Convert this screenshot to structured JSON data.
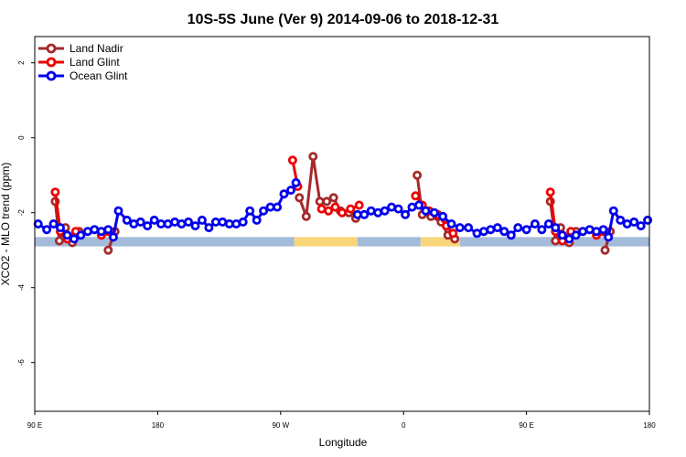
{
  "chart_data": {
    "type": "line",
    "title": "10S-5S June (Ver 9)   2014-09-06 to 2018-12-31",
    "xlabel": "Longitude",
    "ylabel": "XCO2 - MLO trend (ppm)",
    "xlim": [
      0,
      18
    ],
    "ylim": [
      -7.3,
      2.7
    ],
    "x_ticks": [
      {
        "value": 0,
        "label": "90 E"
      },
      {
        "value": 3.6,
        "label": "180"
      },
      {
        "value": 7.2,
        "label": "90 W"
      },
      {
        "value": 10.8,
        "label": "0"
      },
      {
        "value": 14.4,
        "label": "90 E"
      },
      {
        "value": 18,
        "label": "180"
      }
    ],
    "y_ticks": [
      {
        "value": 2,
        "label": "2"
      },
      {
        "value": 0,
        "label": "0"
      },
      {
        "value": -2,
        "label": "-2"
      },
      {
        "value": -4,
        "label": "-4"
      },
      {
        "value": -6,
        "label": "-6"
      }
    ],
    "grid": false,
    "legend_position": "top-left",
    "surface_band": {
      "y_range": [
        -2.9,
        -2.65
      ],
      "segments": [
        {
          "x0": 0,
          "x1": 7.6,
          "type": "ocean",
          "color": "#a4bbd9"
        },
        {
          "x0": 7.6,
          "x1": 9.45,
          "type": "land",
          "color": "#f7d67a"
        },
        {
          "x0": 9.45,
          "x1": 11.3,
          "type": "ocean",
          "color": "#a4bbd9"
        },
        {
          "x0": 11.3,
          "x1": 12.45,
          "type": "land",
          "color": "#f7d67a"
        },
        {
          "x0": 12.45,
          "x1": 18,
          "type": "ocean",
          "color": "#a4bbd9"
        }
      ]
    },
    "series": [
      {
        "name": "Land Nadir",
        "color": "#a52a2a",
        "segments": [
          [
            [
              0.6,
              -1.7
            ],
            [
              0.72,
              -2.75
            ],
            [
              0.9,
              -2.4
            ],
            [
              1.1,
              -2.8
            ],
            [
              1.3,
              -2.5
            ]
          ],
          [
            [
              2.15,
              -3.0
            ],
            [
              2.35,
              -2.5
            ]
          ],
          [
            [
              7.75,
              -1.6
            ],
            [
              7.95,
              -2.1
            ],
            [
              8.15,
              -0.5
            ],
            [
              8.35,
              -1.7
            ],
            [
              8.55,
              -1.7
            ],
            [
              8.75,
              -1.6
            ],
            [
              8.95,
              -1.95
            ],
            [
              9.2,
              -2.0
            ],
            [
              9.4,
              -2.15
            ]
          ],
          [
            [
              11.2,
              -1.0
            ],
            [
              11.35,
              -2.05
            ],
            [
              11.6,
              -2.1
            ],
            [
              11.9,
              -2.25
            ],
            [
              12.1,
              -2.6
            ],
            [
              12.3,
              -2.7
            ]
          ],
          [
            [
              15.1,
              -1.7
            ],
            [
              15.25,
              -2.75
            ],
            [
              15.4,
              -2.4
            ],
            [
              15.65,
              -2.8
            ],
            [
              15.85,
              -2.5
            ]
          ],
          [
            [
              16.7,
              -3.0
            ],
            [
              16.85,
              -2.5
            ]
          ]
        ]
      },
      {
        "name": "Land Glint",
        "color": "#ee0000",
        "segments": [
          [
            [
              0.6,
              -1.45
            ],
            [
              0.75,
              -2.5
            ],
            [
              0.95,
              -2.7
            ],
            [
              1.2,
              -2.5
            ]
          ],
          [
            [
              1.95,
              -2.6
            ],
            [
              2.15,
              -2.5
            ]
          ],
          [
            [
              7.55,
              -0.6
            ],
            [
              7.7,
              -1.3
            ]
          ],
          [
            [
              8.4,
              -1.9
            ],
            [
              8.6,
              -1.95
            ],
            [
              8.8,
              -1.85
            ],
            [
              9.0,
              -2.0
            ],
            [
              9.25,
              -1.9
            ],
            [
              9.5,
              -1.8
            ]
          ],
          [
            [
              11.15,
              -1.55
            ],
            [
              11.35,
              -1.8
            ],
            [
              11.55,
              -1.95
            ],
            [
              11.8,
              -2.05
            ],
            [
              12.05,
              -2.35
            ],
            [
              12.25,
              -2.55
            ]
          ],
          [
            [
              15.1,
              -1.45
            ],
            [
              15.25,
              -2.5
            ],
            [
              15.45,
              -2.75
            ],
            [
              15.7,
              -2.5
            ]
          ],
          [
            [
              16.45,
              -2.6
            ],
            [
              16.65,
              -2.5
            ]
          ]
        ]
      },
      {
        "name": "Ocean Glint",
        "color": "#0000ee",
        "segments": [
          [
            [
              0.1,
              -2.3
            ],
            [
              0.35,
              -2.45
            ],
            [
              0.55,
              -2.3
            ],
            [
              0.75,
              -2.4
            ],
            [
              0.95,
              -2.6
            ],
            [
              1.15,
              -2.7
            ],
            [
              1.35,
              -2.6
            ],
            [
              1.55,
              -2.5
            ],
            [
              1.75,
              -2.45
            ],
            [
              1.95,
              -2.5
            ],
            [
              2.15,
              -2.45
            ],
            [
              2.3,
              -2.65
            ],
            [
              2.45,
              -1.95
            ],
            [
              2.7,
              -2.2
            ],
            [
              2.9,
              -2.3
            ],
            [
              3.1,
              -2.25
            ],
            [
              3.3,
              -2.35
            ],
            [
              3.5,
              -2.2
            ],
            [
              3.7,
              -2.3
            ],
            [
              3.9,
              -2.3
            ],
            [
              4.1,
              -2.25
            ],
            [
              4.3,
              -2.3
            ],
            [
              4.5,
              -2.25
            ],
            [
              4.7,
              -2.35
            ],
            [
              4.9,
              -2.2
            ],
            [
              5.1,
              -2.4
            ],
            [
              5.3,
              -2.25
            ],
            [
              5.5,
              -2.25
            ],
            [
              5.7,
              -2.3
            ],
            [
              5.9,
              -2.3
            ],
            [
              6.1,
              -2.25
            ],
            [
              6.3,
              -1.95
            ],
            [
              6.5,
              -2.2
            ],
            [
              6.7,
              -1.95
            ],
            [
              6.9,
              -1.85
            ],
            [
              7.1,
              -1.85
            ],
            [
              7.3,
              -1.5
            ],
            [
              7.5,
              -1.4
            ],
            [
              7.65,
              -1.2
            ]
          ],
          [
            [
              9.45,
              -2.05
            ],
            [
              9.65,
              -2.05
            ],
            [
              9.85,
              -1.95
            ],
            [
              10.05,
              -2.0
            ],
            [
              10.25,
              -1.95
            ],
            [
              10.45,
              -1.85
            ],
            [
              10.65,
              -1.9
            ],
            [
              10.85,
              -2.05
            ],
            [
              11.05,
              -1.85
            ],
            [
              11.25,
              -1.8
            ],
            [
              11.45,
              -1.95
            ],
            [
              11.7,
              -2.0
            ],
            [
              11.95,
              -2.1
            ],
            [
              12.2,
              -2.3
            ],
            [
              12.45,
              -2.4
            ],
            [
              12.7,
              -2.4
            ],
            [
              12.95,
              -2.55
            ],
            [
              13.15,
              -2.5
            ],
            [
              13.35,
              -2.45
            ],
            [
              13.55,
              -2.4
            ],
            [
              13.75,
              -2.5
            ],
            [
              13.95,
              -2.6
            ],
            [
              14.15,
              -2.4
            ],
            [
              14.4,
              -2.45
            ],
            [
              14.65,
              -2.3
            ],
            [
              14.85,
              -2.45
            ],
            [
              15.05,
              -2.3
            ],
            [
              15.25,
              -2.4
            ],
            [
              15.45,
              -2.6
            ],
            [
              15.65,
              -2.7
            ],
            [
              15.85,
              -2.6
            ],
            [
              16.05,
              -2.5
            ],
            [
              16.25,
              -2.45
            ],
            [
              16.45,
              -2.5
            ],
            [
              16.65,
              -2.45
            ],
            [
              16.8,
              -2.65
            ],
            [
              16.95,
              -1.95
            ],
            [
              17.15,
              -2.2
            ],
            [
              17.35,
              -2.3
            ],
            [
              17.55,
              -2.25
            ],
            [
              17.75,
              -2.35
            ],
            [
              17.95,
              -2.2
            ]
          ]
        ]
      }
    ]
  }
}
